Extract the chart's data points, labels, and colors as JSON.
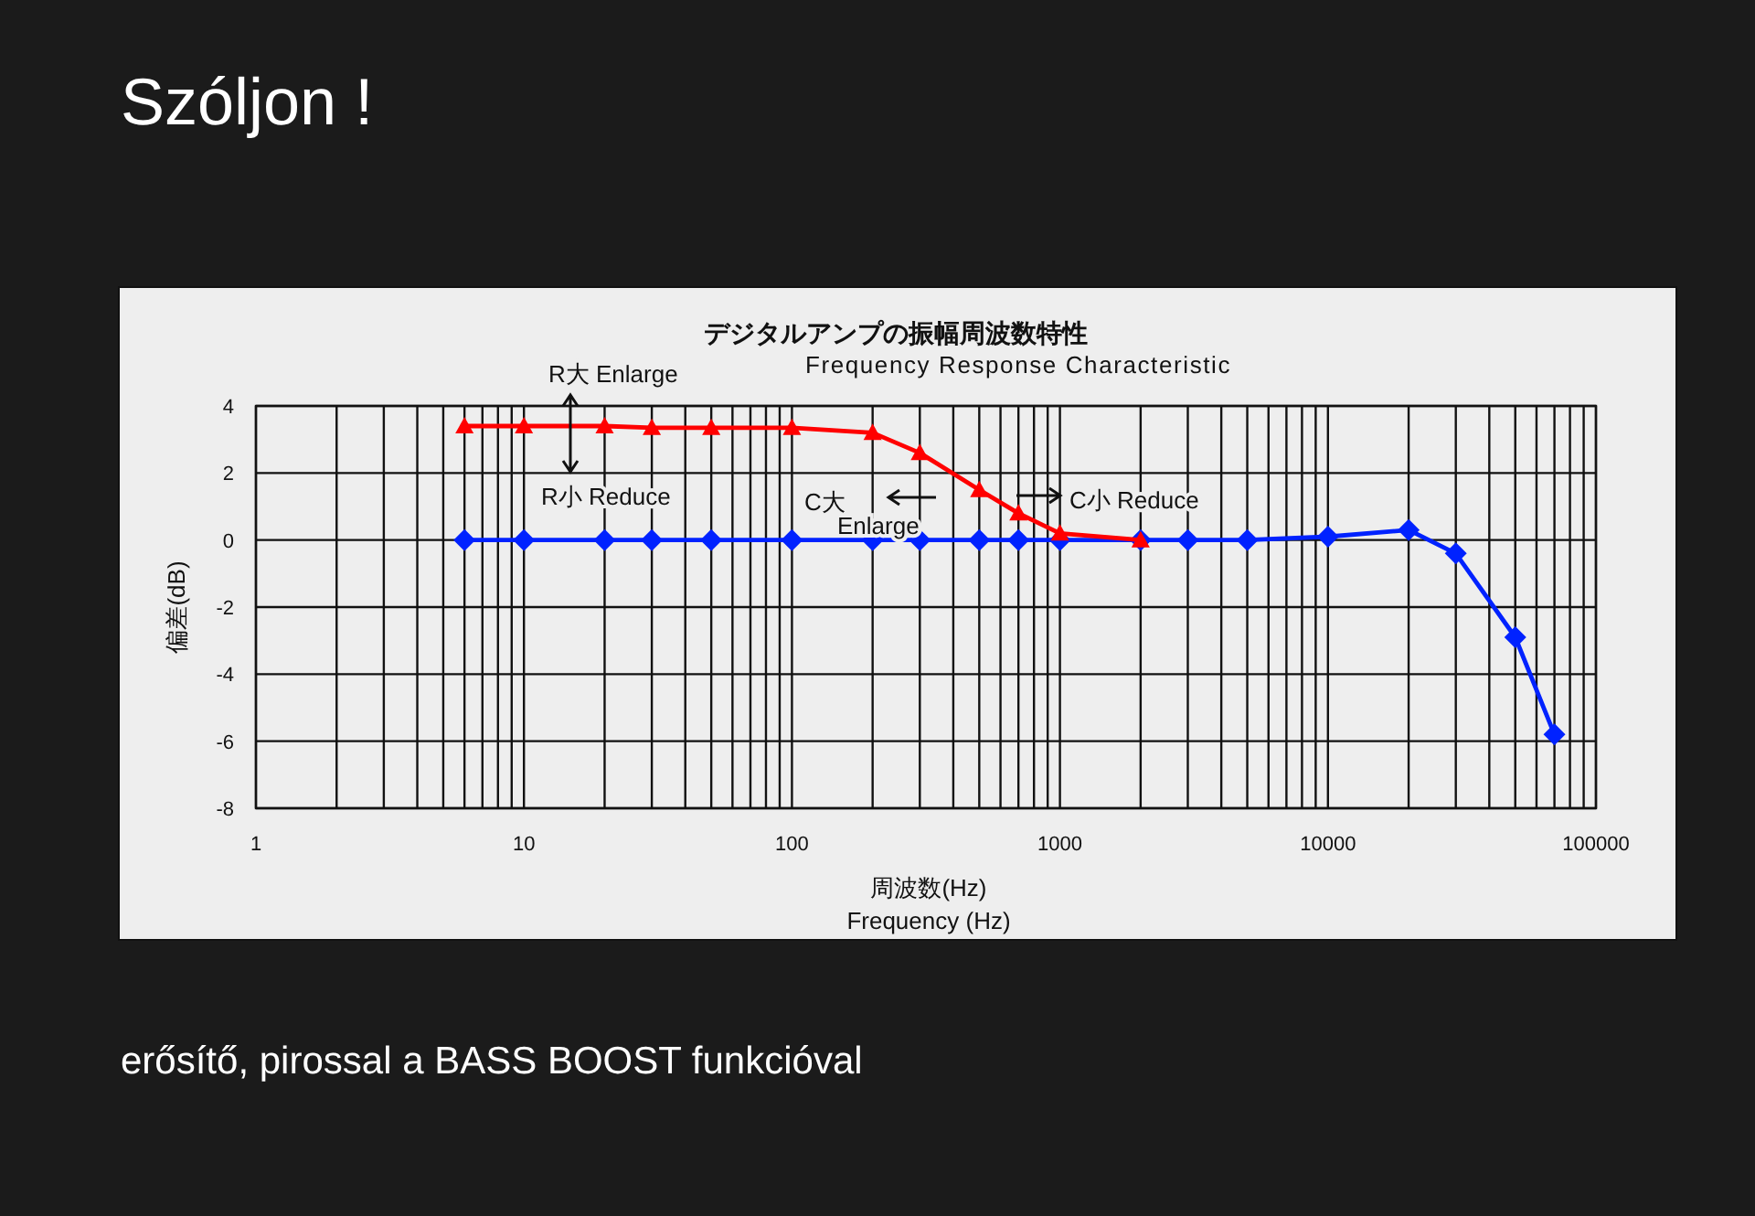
{
  "chart_data": {
    "type": "line",
    "title": "デジタルアンプの振幅周波数特性",
    "subtitle": "Frequency Response Characteristic",
    "xlabel": "周波数(Hz)\nFrequency (Hz)",
    "ylabel": "偏差(dB)",
    "log": "x",
    "grid": true,
    "xlim": [
      1,
      100000
    ],
    "ylim": [
      -8,
      4
    ],
    "xticks": [
      1,
      10,
      100,
      1000,
      10000,
      100000
    ],
    "yticks": [
      -8,
      -6,
      -4,
      -2,
      0,
      2,
      4
    ],
    "series": [
      {
        "color": "#ff0000",
        "marker": "triangle",
        "x": [
          6,
          10,
          20,
          30,
          50,
          100,
          200,
          300,
          500,
          700,
          1000,
          2000
        ],
        "values": [
          3.4,
          3.4,
          3.4,
          3.35,
          3.35,
          3.35,
          3.2,
          2.6,
          1.5,
          0.8,
          0.2,
          0
        ]
      },
      {
        "color": "#0022ff",
        "marker": "diamond",
        "x": [
          6,
          10,
          20,
          30,
          50,
          100,
          200,
          300,
          500,
          700,
          1000,
          2000,
          3000,
          5000,
          10000,
          20000,
          30000,
          50000,
          70000
        ],
        "values": [
          0,
          0,
          0,
          0,
          0,
          0,
          0,
          0,
          0,
          0,
          0,
          0,
          0,
          0,
          0.1,
          0.3,
          -0.4,
          -2.9,
          -5.8
        ]
      }
    ],
    "annotations": [
      "Szóljon !",
      "erősítő, pirossal a BASS BOOST funkcióval",
      "R大 Enlarge",
      "R小 Reduce",
      "C大\nEnlarge",
      "C小 Reduce"
    ]
  }
}
